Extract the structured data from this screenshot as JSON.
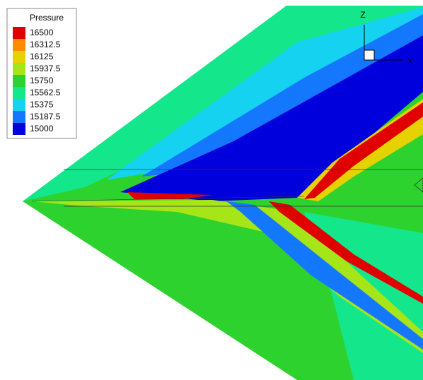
{
  "legend": {
    "title": "Pressure",
    "levels": [
      {
        "label": "16500",
        "color": "#e00000"
      },
      {
        "label": "16312.5",
        "color": "#ff8c00"
      },
      {
        "label": "16125",
        "color": "#e6d200"
      },
      {
        "label": "15937.5",
        "color": "#a6e619"
      },
      {
        "label": "15750",
        "color": "#2ed22e"
      },
      {
        "label": "15562.5",
        "color": "#14e68c"
      },
      {
        "label": "15375",
        "color": "#14d2f0"
      },
      {
        "label": "15187.5",
        "color": "#1478ff"
      },
      {
        "label": "15000",
        "color": "#0000dc"
      }
    ]
  },
  "axes": {
    "z": "Z",
    "x": "X"
  }
}
